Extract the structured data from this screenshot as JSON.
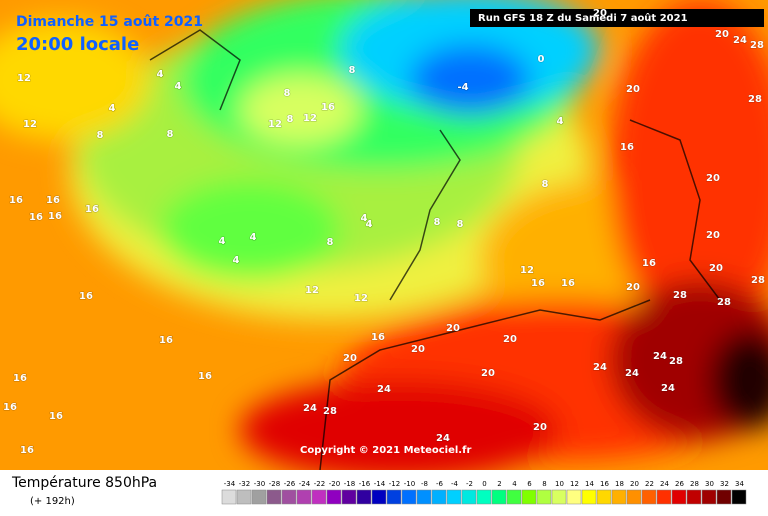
{
  "header": {
    "date": "Dimanche 15 août 2021",
    "time": "20:00 locale",
    "run": "Run GFS 18 Z du Samedi 7 août 2021"
  },
  "copyright": "Copyright © 2021 Meteociel.fr",
  "footer": {
    "title": "Température 850hPa",
    "lead": "(+ 192h)"
  },
  "legend": {
    "values": [
      -34,
      -32,
      -30,
      -28,
      -26,
      -24,
      -22,
      -20,
      -18,
      -16,
      -14,
      -12,
      -10,
      -8,
      -6,
      -4,
      -2,
      0,
      2,
      4,
      6,
      8,
      10,
      12,
      14,
      16,
      18,
      20,
      22,
      24,
      26,
      28,
      30,
      32,
      34
    ],
    "colors": [
      "#dcdcdc",
      "#bebebe",
      "#a0a0a0",
      "#8c5a8c",
      "#a050a0",
      "#b040b0",
      "#c030c0",
      "#9000c0",
      "#6000a0",
      "#3000a0",
      "#0000c0",
      "#0040e0",
      "#0070ff",
      "#0090ff",
      "#00b0ff",
      "#00d0ff",
      "#00e8e0",
      "#00ffc0",
      "#00ff80",
      "#40ff40",
      "#80ff00",
      "#b0ff40",
      "#d8ff60",
      "#ffff80",
      "#ffff00",
      "#ffd800",
      "#ffb000",
      "#ff9000",
      "#ff6000",
      "#ff3000",
      "#e00000",
      "#c00000",
      "#a00000",
      "#700000",
      "#000000"
    ]
  },
  "contour_labels": [
    20,
    24,
    28,
    20,
    28,
    16,
    20,
    20,
    16,
    20,
    28,
    28,
    28,
    24,
    28,
    24,
    24,
    24,
    16,
    16,
    20,
    12,
    8,
    4,
    -4,
    0,
    8,
    8,
    4,
    4,
    8,
    4,
    4,
    4,
    8,
    12,
    8,
    12,
    16,
    8,
    4,
    4,
    4,
    8,
    8,
    12,
    12,
    16,
    16,
    16,
    16,
    16,
    16,
    16,
    16,
    16,
    16,
    16,
    16,
    12,
    12,
    16,
    20,
    20,
    20,
    24,
    24,
    28,
    20,
    20,
    20,
    24,
    20
  ]
}
